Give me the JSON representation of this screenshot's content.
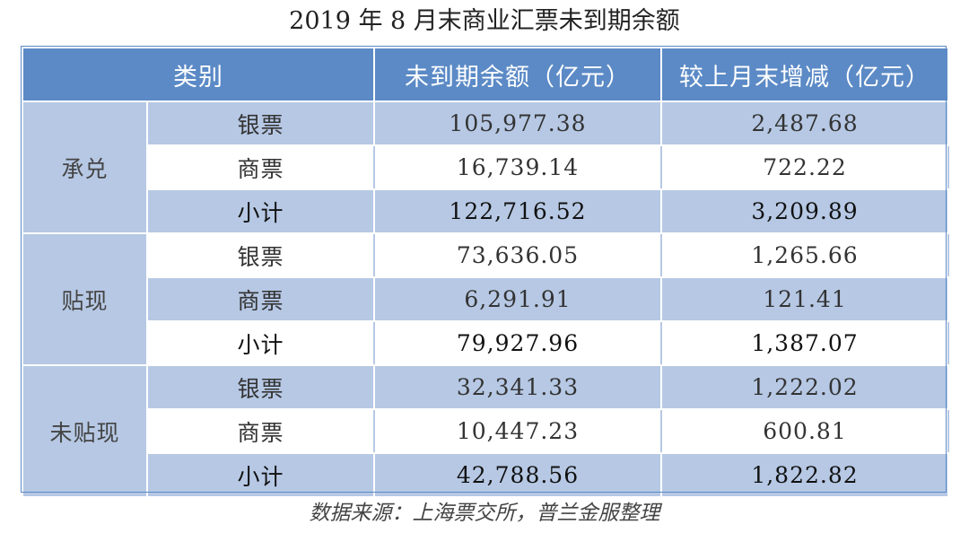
{
  "title": "2019 年 8 月末商业汇票未到期余额",
  "header": {
    "category": "类别",
    "balance": "未到期余额（亿元）",
    "change": "较上月末增减（亿元）"
  },
  "groups": [
    {
      "name": "承兑",
      "rows": [
        {
          "type": "银票",
          "balance": "105,977.38",
          "change": "2,487.68"
        },
        {
          "type": "商票",
          "balance": "16,739.14",
          "change": "722.22"
        },
        {
          "type": "小计",
          "balance": "122,716.52",
          "change": "3,209.89"
        }
      ]
    },
    {
      "name": "贴现",
      "rows": [
        {
          "type": "银票",
          "balance": "73,636.05",
          "change": "1,265.66"
        },
        {
          "type": "商票",
          "balance": "6,291.91",
          "change": "121.41"
        },
        {
          "type": "小计",
          "balance": "79,927.96",
          "change": "1,387.07"
        }
      ]
    },
    {
      "name": "未贴现",
      "rows": [
        {
          "type": "银票",
          "balance": "32,341.33",
          "change": "1,222.02"
        },
        {
          "type": "商票",
          "balance": "10,447.23",
          "change": "600.81"
        },
        {
          "type": "小计",
          "balance": "42,788.56",
          "change": "1,822.82"
        }
      ]
    }
  ],
  "source": "数据来源：上海票交所，普兰金服整理",
  "colors": {
    "header_bg": "#5b8ac6",
    "band_bg": "#b6c8e4",
    "plain_bg": "#ffffff"
  }
}
